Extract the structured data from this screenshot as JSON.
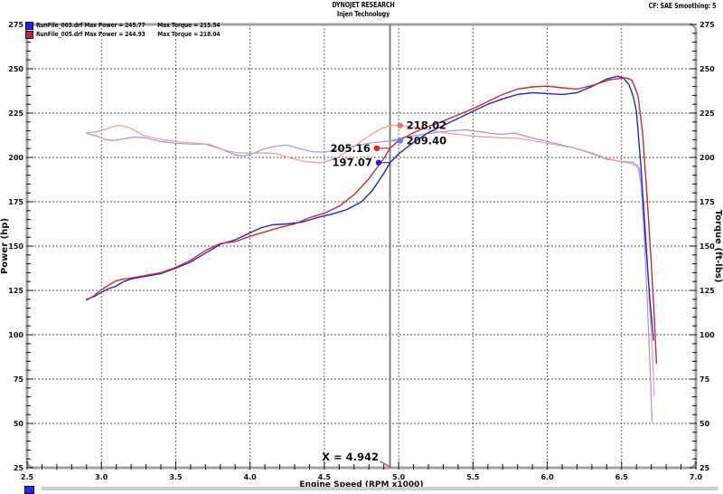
{
  "header": {
    "title": "DYNOJET RESEARCH",
    "subtitle": "Injen Technology",
    "correction_info": "CF: SAE  Smoothing: 5"
  },
  "legend": {
    "runs": [
      {
        "swatch_color": "#2222cc",
        "power_label": "RunFile_003.drf Max Power = 245.77",
        "torque_label": "Max Torque = 215.54"
      },
      {
        "swatch_color": "#cc2222",
        "power_label": "RunFile_005.drf Max Power = 244.93",
        "torque_label": "Max Torque = 218.04"
      }
    ]
  },
  "bottom_strip": {
    "swatch_color": "#2233cc",
    "bar_color": "#cfcfcf"
  },
  "chart_data": {
    "type": "line",
    "title": "DYNOJET RESEARCH",
    "subtitle": "Injen Technology",
    "xlabel": "Engine Speed (RPM x1000)",
    "ylabel_left": "Power (hp)",
    "ylabel_right": "Torque (ft-lbs)",
    "xlim": [
      2.5,
      7.0
    ],
    "ylim": [
      25,
      275
    ],
    "x_major_step": 0.5,
    "x_minor_step": 0.1,
    "y_major_step": 25,
    "y_minor_step": 5,
    "x_major_ticks": [
      "2.5",
      "3.0",
      "3.5",
      "4.0",
      "4.5",
      "5.0",
      "5.5",
      "6.0",
      "6.5",
      "7.0"
    ],
    "y_major_ticks": [
      "275",
      "250",
      "225",
      "200",
      "175",
      "150",
      "125",
      "100",
      "75",
      "50",
      "25"
    ],
    "grid": "dashed-major",
    "legend_position": "top-left",
    "cursor": {
      "x": 4.942,
      "label": "X = 4.942"
    },
    "cursor_markers": [
      {
        "label": "218.02",
        "series": "runfile-005-torque",
        "rpm_dot": 5.01,
        "value": 218.02,
        "text_side": "right",
        "dot_color": "#e87070",
        "leader_color": "#e8a0a0"
      },
      {
        "label": "209.40",
        "series": "runfile-003-torque",
        "rpm_dot": 5.01,
        "value": 209.4,
        "text_side": "right",
        "dot_color": "#7878d8",
        "leader_color": "#9a9ade"
      },
      {
        "label": "205.16",
        "series": "runfile-005-power",
        "rpm_dot": 4.853,
        "value": 205.16,
        "text_side": "left",
        "dot_color": "#dd2020",
        "leader_color": "#c43030"
      },
      {
        "label": "197.07",
        "series": "runfile-003-power",
        "rpm_dot": 4.865,
        "value": 197.07,
        "text_side": "left",
        "dot_color": "#2020dd",
        "leader_color": "#2828c8"
      }
    ],
    "series": [
      {
        "id": "runfile-003-torque",
        "name": "RunFile_003 Torque",
        "color": "#9a9ade",
        "width": 1.2,
        "points": [
          [
            2.9,
            213.5
          ],
          [
            2.97,
            212
          ],
          [
            3.03,
            210
          ],
          [
            3.08,
            209.5
          ],
          [
            3.15,
            210.5
          ],
          [
            3.22,
            211.5
          ],
          [
            3.3,
            211
          ],
          [
            3.4,
            209
          ],
          [
            3.5,
            208
          ],
          [
            3.6,
            207.5
          ],
          [
            3.7,
            207.5
          ],
          [
            3.8,
            204.8
          ],
          [
            3.9,
            201.5
          ],
          [
            3.96,
            200.8
          ],
          [
            4.03,
            202.5
          ],
          [
            4.1,
            205
          ],
          [
            4.18,
            206.5
          ],
          [
            4.25,
            207
          ],
          [
            4.33,
            205
          ],
          [
            4.42,
            203.2
          ],
          [
            4.5,
            203
          ],
          [
            4.6,
            204.5
          ],
          [
            4.7,
            206.5
          ],
          [
            4.8,
            208
          ],
          [
            4.88,
            208.8
          ],
          [
            4.942,
            209.4
          ],
          [
            5.05,
            211.5
          ],
          [
            5.2,
            213.5
          ],
          [
            5.35,
            215
          ],
          [
            5.45,
            215.54
          ],
          [
            5.55,
            214.5
          ],
          [
            5.62,
            213.5
          ],
          [
            5.7,
            213
          ],
          [
            5.78,
            213.8
          ],
          [
            5.85,
            212
          ],
          [
            5.95,
            210
          ],
          [
            6.05,
            208
          ],
          [
            6.15,
            206
          ],
          [
            6.25,
            203.5
          ],
          [
            6.32,
            201.5
          ],
          [
            6.4,
            199
          ],
          [
            6.5,
            197.8
          ],
          [
            6.58,
            197.2
          ],
          [
            6.61,
            195
          ],
          [
            6.63,
            185
          ],
          [
            6.65,
            160
          ],
          [
            6.67,
            125
          ],
          [
            6.69,
            85
          ],
          [
            6.705,
            51
          ]
        ]
      },
      {
        "id": "runfile-005-torque",
        "name": "RunFile_005 Torque",
        "color": "#e8a0a0",
        "width": 1.2,
        "points": [
          [
            2.9,
            213.8
          ],
          [
            3.0,
            215
          ],
          [
            3.08,
            217.5
          ],
          [
            3.13,
            218.04
          ],
          [
            3.2,
            216.5
          ],
          [
            3.28,
            212.5
          ],
          [
            3.35,
            211
          ],
          [
            3.45,
            209.5
          ],
          [
            3.55,
            208.5
          ],
          [
            3.65,
            208
          ],
          [
            3.73,
            207.3
          ],
          [
            3.82,
            204.3
          ],
          [
            3.9,
            202.8
          ],
          [
            4.0,
            202.3
          ],
          [
            4.1,
            202.6
          ],
          [
            4.18,
            202
          ],
          [
            4.28,
            199.5
          ],
          [
            4.38,
            197.5
          ],
          [
            4.48,
            197
          ],
          [
            4.58,
            199.5
          ],
          [
            4.68,
            205
          ],
          [
            4.78,
            211
          ],
          [
            4.88,
            216.2
          ],
          [
            4.942,
            218.02
          ],
          [
            5.0,
            218.2
          ],
          [
            5.1,
            217
          ],
          [
            5.2,
            215.5
          ],
          [
            5.3,
            214
          ],
          [
            5.4,
            213
          ],
          [
            5.5,
            212
          ],
          [
            5.6,
            211.5
          ],
          [
            5.7,
            211
          ],
          [
            5.8,
            210.8
          ],
          [
            5.9,
            209.5
          ],
          [
            6.0,
            208
          ],
          [
            6.1,
            206.5
          ],
          [
            6.2,
            205
          ],
          [
            6.3,
            202.5
          ],
          [
            6.4,
            199.5
          ],
          [
            6.5,
            197.5
          ],
          [
            6.56,
            196.8
          ],
          [
            6.62,
            194
          ],
          [
            6.65,
            175
          ],
          [
            6.67,
            148
          ],
          [
            6.69,
            115
          ],
          [
            6.71,
            85
          ],
          [
            6.72,
            66
          ]
        ]
      },
      {
        "id": "runfile-003-power",
        "name": "RunFile_003 Power",
        "color": "#2828c8",
        "width": 1.4,
        "points": [
          [
            2.9,
            120
          ],
          [
            2.95,
            121.5
          ],
          [
            3.0,
            124
          ],
          [
            3.05,
            126
          ],
          [
            3.1,
            127.5
          ],
          [
            3.15,
            130
          ],
          [
            3.2,
            131.5
          ],
          [
            3.3,
            133
          ],
          [
            3.4,
            134.5
          ],
          [
            3.5,
            137.5
          ],
          [
            3.6,
            141
          ],
          [
            3.7,
            146
          ],
          [
            3.8,
            151
          ],
          [
            3.9,
            153.5
          ],
          [
            4.0,
            157.5
          ],
          [
            4.08,
            160.5
          ],
          [
            4.15,
            162
          ],
          [
            4.25,
            162.5
          ],
          [
            4.35,
            163.5
          ],
          [
            4.45,
            166
          ],
          [
            4.55,
            168
          ],
          [
            4.65,
            170.5
          ],
          [
            4.75,
            175
          ],
          [
            4.82,
            181
          ],
          [
            4.9,
            191
          ],
          [
            4.942,
            197.07
          ],
          [
            5.0,
            202
          ],
          [
            5.1,
            208.5
          ],
          [
            5.2,
            214
          ],
          [
            5.3,
            218
          ],
          [
            5.4,
            222
          ],
          [
            5.5,
            226
          ],
          [
            5.6,
            230
          ],
          [
            5.7,
            233
          ],
          [
            5.8,
            235.5
          ],
          [
            5.9,
            236.5
          ],
          [
            6.0,
            236
          ],
          [
            6.1,
            235.5
          ],
          [
            6.2,
            236.5
          ],
          [
            6.3,
            240
          ],
          [
            6.4,
            244.2
          ],
          [
            6.47,
            245.77
          ],
          [
            6.51,
            245
          ],
          [
            6.55,
            241
          ],
          [
            6.58,
            234
          ],
          [
            6.6,
            226
          ],
          [
            6.63,
            195
          ],
          [
            6.66,
            155
          ],
          [
            6.69,
            120
          ],
          [
            6.715,
            97
          ]
        ]
      },
      {
        "id": "runfile-005-power",
        "name": "RunFile_005 Power",
        "color": "#c43030",
        "width": 1.4,
        "points": [
          [
            2.9,
            119.5
          ],
          [
            2.95,
            122
          ],
          [
            3.0,
            125.5
          ],
          [
            3.05,
            128
          ],
          [
            3.1,
            130.5
          ],
          [
            3.15,
            131.5
          ],
          [
            3.2,
            132
          ],
          [
            3.3,
            133.5
          ],
          [
            3.4,
            135
          ],
          [
            3.5,
            138
          ],
          [
            3.6,
            142
          ],
          [
            3.7,
            147.5
          ],
          [
            3.8,
            151.5
          ],
          [
            3.9,
            152.5
          ],
          [
            4.0,
            155.5
          ],
          [
            4.1,
            158
          ],
          [
            4.2,
            160.5
          ],
          [
            4.3,
            162.5
          ],
          [
            4.4,
            166
          ],
          [
            4.5,
            168.5
          ],
          [
            4.6,
            172.5
          ],
          [
            4.7,
            179
          ],
          [
            4.8,
            188
          ],
          [
            4.9,
            199.5
          ],
          [
            4.942,
            205.16
          ],
          [
            5.0,
            209.5
          ],
          [
            5.1,
            214
          ],
          [
            5.2,
            217.5
          ],
          [
            5.3,
            220.5
          ],
          [
            5.4,
            224
          ],
          [
            5.5,
            227.5
          ],
          [
            5.6,
            231.5
          ],
          [
            5.7,
            235.5
          ],
          [
            5.8,
            238.5
          ],
          [
            5.9,
            239.8
          ],
          [
            6.0,
            240.2
          ],
          [
            6.1,
            239.3
          ],
          [
            6.2,
            238.5
          ],
          [
            6.3,
            240.5
          ],
          [
            6.42,
            243.8
          ],
          [
            6.53,
            244.93
          ],
          [
            6.57,
            243.5
          ],
          [
            6.61,
            235
          ],
          [
            6.64,
            215
          ],
          [
            6.67,
            180
          ],
          [
            6.7,
            140
          ],
          [
            6.72,
            110
          ],
          [
            6.735,
            84
          ]
        ]
      }
    ]
  }
}
